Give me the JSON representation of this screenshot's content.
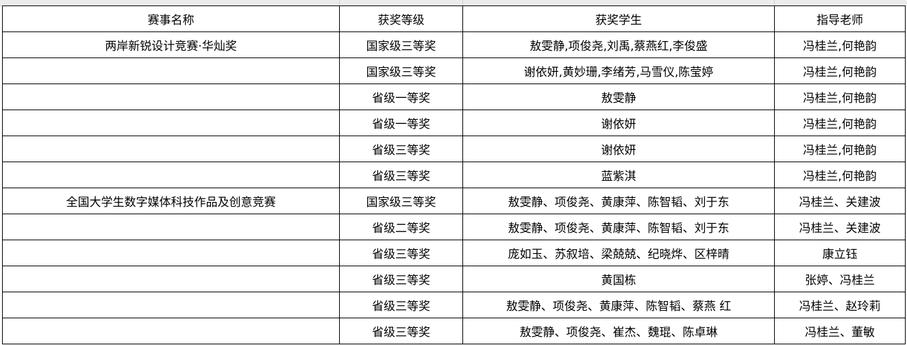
{
  "headers": [
    "赛事名称",
    "获奖等级",
    "获奖学生",
    "指导老师"
  ],
  "rows": [
    {
      "event": "两岸新锐设计竞赛·华灿奖",
      "level": "国家级三等奖",
      "students": "敖雯静,项俊尧,刘禹,蔡燕红,李俊盛",
      "advisors": "冯桂兰,何艳韵"
    },
    {
      "event": "",
      "level": "国家级三等奖",
      "students": "谢依妍,黄妙珊,李绪芳,马雪仪,陈莹婷",
      "advisors": "冯桂兰,何艳韵"
    },
    {
      "event": "",
      "level": "省级一等奖",
      "students": "敖雯静",
      "advisors": "冯桂兰,何艳韵"
    },
    {
      "event": "",
      "level": "省级一等奖",
      "students": "谢依妍",
      "advisors": "冯桂兰,何艳韵"
    },
    {
      "event": "",
      "level": "省级三等奖",
      "students": "谢依妍",
      "advisors": "冯桂兰,何艳韵"
    },
    {
      "event": "",
      "level": "省级三等奖",
      "students": "蓝紫淇",
      "advisors": "冯桂兰,何艳韵"
    },
    {
      "event": "全国大学生数字媒体科技作品及创意竞赛",
      "level": "国家级三等奖",
      "students": "敖雯静、项俊尧、黄康萍、陈智韬、刘于东",
      "advisors": "冯桂兰、关建波"
    },
    {
      "event": "",
      "level": "省级二等奖",
      "students": "敖雯静、项俊尧、黄康萍、陈智韬、刘于东",
      "advisors": "冯桂兰、关建波"
    },
    {
      "event": "",
      "level": "省级三等奖",
      "students": "庞如玉、苏叙培、梁兢兢、纪晓烨、区梓晴",
      "advisors": "康立钰"
    },
    {
      "event": "",
      "level": "省级三等奖",
      "students": "黄国栋",
      "advisors": "张婷、冯桂兰"
    },
    {
      "event": "",
      "level": "省级三等奖",
      "students": "敖雯静、项俊尧、黄康萍、陈智韬、蔡燕 红",
      "advisors": "冯桂兰、赵玲莉"
    },
    {
      "event": "",
      "level": "省级三等奖",
      "students": "敖雯静、项俊尧、崔杰、魏琨、陈卓琳",
      "advisors": "冯桂兰、董敏"
    }
  ]
}
